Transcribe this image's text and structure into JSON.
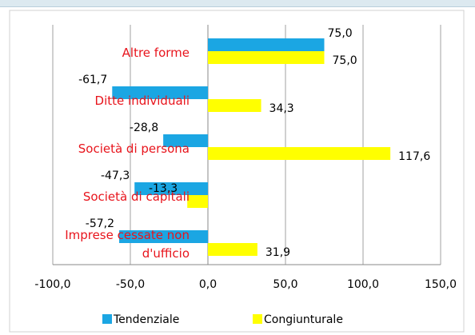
{
  "chart_data": {
    "type": "hbar",
    "categories": [
      "Altre forme",
      "Ditte individuali",
      "Società di persona",
      "Società di capitali",
      "Imprese cessate non d'ufficio"
    ],
    "series": [
      {
        "name": "Tendenziale",
        "color": "#1ba6e3",
        "values": [
          75.0,
          -61.7,
          -28.8,
          -47.3,
          -57.2
        ],
        "value_labels": [
          "75,0",
          "-61,7",
          "-28,8",
          "-47,3",
          "-57,2"
        ]
      },
      {
        "name": "Congiunturale",
        "color": "#ffff00",
        "values": [
          75.0,
          34.3,
          117.6,
          -13.3,
          31.9
        ],
        "value_labels": [
          "75,0",
          "34,3",
          "117,6",
          "-13,3",
          "31,9"
        ]
      }
    ],
    "xlim": [
      -100,
      150
    ],
    "xticks": [
      {
        "value": -100,
        "label": "-100,0"
      },
      {
        "value": -50,
        "label": "-50,0"
      },
      {
        "value": 0,
        "label": "0,0"
      },
      {
        "value": 50,
        "label": "50,0"
      },
      {
        "value": 100,
        "label": "100,0"
      },
      {
        "value": 150,
        "label": "150,0"
      }
    ],
    "grid": true,
    "legend": "bottom"
  }
}
